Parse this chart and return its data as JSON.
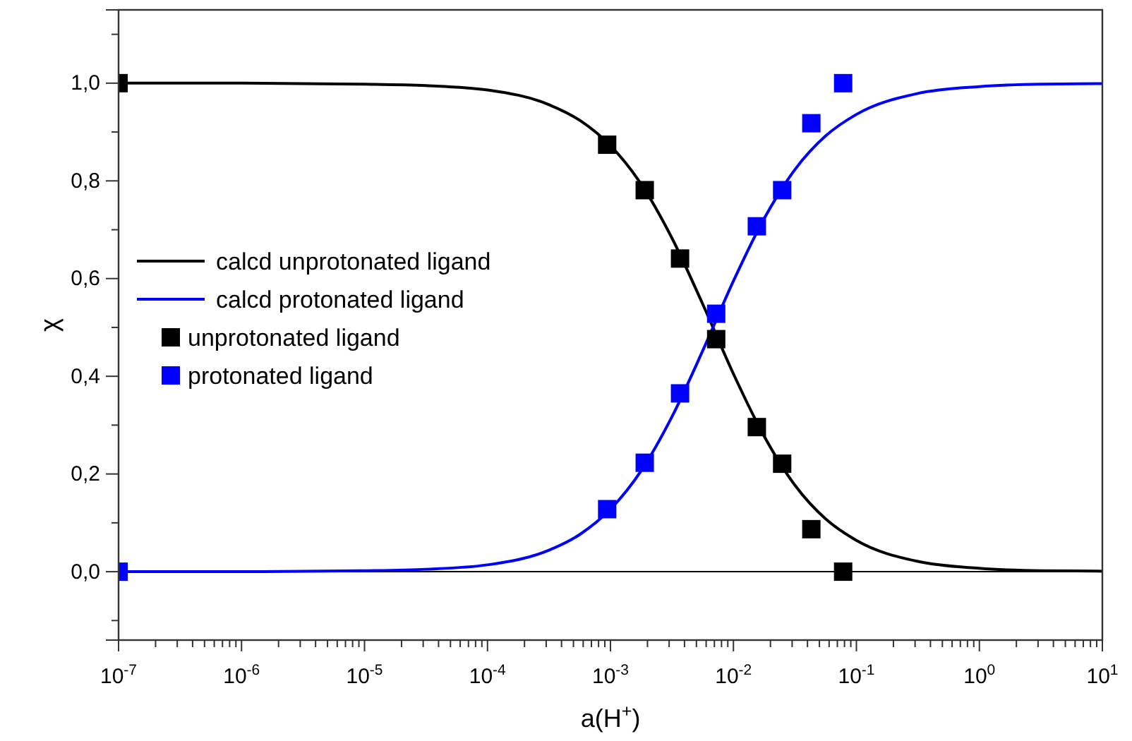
{
  "chart_data": {
    "type": "line",
    "xlabel": "a(H$^{+}$)",
    "ylabel": "χ",
    "log": "x",
    "xlim": [
      1e-07,
      10
    ],
    "ylim": [
      -0.14,
      1.15
    ],
    "xticks": [
      {
        "value": 1e-07,
        "label": "10$^{-7}$"
      },
      {
        "value": 2e-07,
        "label": null
      },
      {
        "value": 3e-07,
        "label": null
      },
      {
        "value": 4e-07,
        "label": null
      },
      {
        "value": 5e-07,
        "label": null
      },
      {
        "value": 6e-07,
        "label": null
      },
      {
        "value": 7e-07,
        "label": null
      },
      {
        "value": 8e-07,
        "label": null
      },
      {
        "value": 9e-07,
        "label": null
      },
      {
        "value": 1e-06,
        "label": "10$^{-6}$"
      },
      {
        "value": 2e-06,
        "label": null
      },
      {
        "value": 3e-06,
        "label": null
      },
      {
        "value": 4e-06,
        "label": null
      },
      {
        "value": 5e-06,
        "label": null
      },
      {
        "value": 6e-06,
        "label": null
      },
      {
        "value": 7e-06,
        "label": null
      },
      {
        "value": 8e-06,
        "label": null
      },
      {
        "value": 9e-06,
        "label": null
      },
      {
        "value": 1e-05,
        "label": "10$^{-5}$"
      },
      {
        "value": 2e-05,
        "label": null
      },
      {
        "value": 3e-05,
        "label": null
      },
      {
        "value": 4e-05,
        "label": null
      },
      {
        "value": 5e-05,
        "label": null
      },
      {
        "value": 6e-05,
        "label": null
      },
      {
        "value": 7e-05,
        "label": null
      },
      {
        "value": 8e-05,
        "label": null
      },
      {
        "value": 9e-05,
        "label": null
      },
      {
        "value": 0.0001,
        "label": "10$^{-4}$"
      },
      {
        "value": 0.0002,
        "label": null
      },
      {
        "value": 0.0003,
        "label": null
      },
      {
        "value": 0.0004,
        "label": null
      },
      {
        "value": 0.0005,
        "label": null
      },
      {
        "value": 0.0006,
        "label": null
      },
      {
        "value": 0.0007,
        "label": null
      },
      {
        "value": 0.0008,
        "label": null
      },
      {
        "value": 0.0009,
        "label": null
      },
      {
        "value": 0.001,
        "label": "10$^{-3}$"
      },
      {
        "value": 0.002,
        "label": null
      },
      {
        "value": 0.003,
        "label": null
      },
      {
        "value": 0.004,
        "label": null
      },
      {
        "value": 0.005,
        "label": null
      },
      {
        "value": 0.006,
        "label": null
      },
      {
        "value": 0.007,
        "label": null
      },
      {
        "value": 0.008,
        "label": null
      },
      {
        "value": 0.009,
        "label": null
      },
      {
        "value": 0.01,
        "label": "10$^{-2}$"
      },
      {
        "value": 0.02,
        "label": null
      },
      {
        "value": 0.03,
        "label": null
      },
      {
        "value": 0.04,
        "label": null
      },
      {
        "value": 0.05,
        "label": null
      },
      {
        "value": 0.06,
        "label": null
      },
      {
        "value": 0.07,
        "label": null
      },
      {
        "value": 0.08,
        "label": null
      },
      {
        "value": 0.09,
        "label": null
      },
      {
        "value": 0.1,
        "label": "10$^{-1}$"
      },
      {
        "value": 0.2,
        "label": null
      },
      {
        "value": 0.3,
        "label": null
      },
      {
        "value": 0.4,
        "label": null
      },
      {
        "value": 0.5,
        "label": null
      },
      {
        "value": 0.6,
        "label": null
      },
      {
        "value": 0.7,
        "label": null
      },
      {
        "value": 0.8,
        "label": null
      },
      {
        "value": 0.9,
        "label": null
      },
      {
        "value": 1,
        "label": "10$^{0}$"
      },
      {
        "value": 2,
        "label": null
      },
      {
        "value": 3,
        "label": null
      },
      {
        "value": 4,
        "label": null
      },
      {
        "value": 5,
        "label": null
      },
      {
        "value": 6,
        "label": null
      },
      {
        "value": 7,
        "label": null
      },
      {
        "value": 8,
        "label": null
      },
      {
        "value": 9,
        "label": null
      },
      {
        "value": 10,
        "label": "10$^{1}$"
      }
    ],
    "yticks": [
      {
        "value": -0.1,
        "label": null
      },
      {
        "value": 0,
        "label": "0,0"
      },
      {
        "value": 0.1,
        "label": null
      },
      {
        "value": 0.2,
        "label": "0,2"
      },
      {
        "value": 0.3,
        "label": null
      },
      {
        "value": 0.4,
        "label": "0,4"
      },
      {
        "value": 0.5,
        "label": null
      },
      {
        "value": 0.6,
        "label": "0,6"
      },
      {
        "value": 0.7,
        "label": null
      },
      {
        "value": 0.8,
        "label": "0,8"
      },
      {
        "value": 0.9,
        "label": null
      },
      {
        "value": 1,
        "label": "1,0"
      },
      {
        "value": 1.1,
        "label": null
      }
    ],
    "grid": false,
    "legend": "left",
    "ref_lines": [
      {
        "axis": "y",
        "value": 0,
        "color": "#000000"
      }
    ],
    "series": [
      {
        "name": "calcd unprotonated ligand",
        "color": "#000000",
        "line_style": "solid",
        "marker": "none",
        "x": [
          1e-07,
          1e-06,
          1e-05,
          3.16e-05,
          0.0001,
          0.000316,
          0.000562,
          0.001,
          0.00178,
          0.00316,
          0.00562,
          0.01,
          0.0178,
          0.0316,
          0.0562,
          0.1,
          0.316,
          1,
          3.16,
          10
        ],
        "values": [
          1,
          1,
          0.998,
          0.995,
          0.986,
          0.956,
          0.924,
          0.872,
          0.793,
          0.683,
          0.548,
          0.405,
          0.277,
          0.177,
          0.108,
          0.064,
          0.021,
          0.007,
          0.002,
          0.001
        ]
      },
      {
        "name": "calcd protonated ligand",
        "color": "#0000ff",
        "line_style": "solid",
        "marker": "none",
        "x": [
          1e-07,
          1e-06,
          1e-05,
          3.16e-05,
          0.0001,
          0.000316,
          0.000562,
          0.001,
          0.00178,
          0.00316,
          0.00562,
          0.01,
          0.0178,
          0.0316,
          0.0562,
          0.1,
          0.316,
          1,
          3.16,
          10
        ],
        "values": [
          0,
          0,
          0.002,
          0.005,
          0.014,
          0.044,
          0.076,
          0.128,
          0.207,
          0.317,
          0.452,
          0.595,
          0.723,
          0.823,
          0.892,
          0.936,
          0.979,
          0.993,
          0.998,
          0.999
        ]
      },
      {
        "name": "unprotonated ligand",
        "type": "scatter",
        "color": "#000000",
        "marker": "square",
        "x": [
          1e-07,
          0.00094,
          0.0019,
          0.00368,
          0.00724,
          0.0155,
          0.0249,
          0.043,
          0.078
        ],
        "values": [
          1,
          0.874,
          0.781,
          0.641,
          0.476,
          0.296,
          0.221,
          0.087,
          0
        ]
      },
      {
        "name": "protonated ligand",
        "type": "scatter",
        "color": "#0000ff",
        "marker": "square",
        "x": [
          1e-07,
          0.00094,
          0.0019,
          0.00368,
          0.00724,
          0.0155,
          0.0249,
          0.043,
          0.078
        ],
        "values": [
          0,
          0.128,
          0.223,
          0.365,
          0.528,
          0.707,
          0.781,
          0.918,
          1
        ]
      }
    ]
  }
}
